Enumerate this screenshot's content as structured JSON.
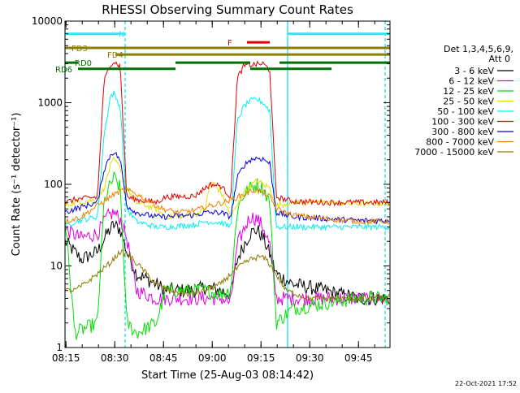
{
  "chart_data": {
    "type": "line",
    "title": "RHESSI Observing Summary Count Rates",
    "xlabel": "Start Time (25-Aug-03 08:14:42)",
    "ylabel": "Count Rate (s⁻¹ detector⁻¹)",
    "yscale": "log",
    "ylim": [
      1,
      10000
    ],
    "xlim_minutes": [
      0,
      100
    ],
    "x_ticks": [
      "08:15",
      "08:30",
      "08:45",
      "09:00",
      "09:15",
      "09:30",
      "09:45"
    ],
    "y_ticks": [
      "1",
      "10",
      "100",
      "1000",
      "10000"
    ],
    "legend_header": [
      "Det 1,3,4,5,6,9,",
      "Att 0"
    ],
    "legend_placement": "right",
    "series": [
      {
        "name": "3 - 6 keV",
        "color": "#000000",
        "points": [
          [
            0,
            20
          ],
          [
            5,
            12
          ],
          [
            10,
            15
          ],
          [
            13,
            25
          ],
          [
            15,
            32
          ],
          [
            17,
            28
          ],
          [
            19,
            15
          ],
          [
            22,
            8
          ],
          [
            28,
            6
          ],
          [
            31,
            5
          ],
          [
            40,
            5
          ],
          [
            43,
            5.5
          ],
          [
            48,
            5
          ],
          [
            51,
            4.5
          ],
          [
            53,
            12
          ],
          [
            55,
            18
          ],
          [
            57,
            25
          ],
          [
            59,
            28
          ],
          [
            61,
            22
          ],
          [
            63,
            14
          ],
          [
            65,
            8
          ],
          [
            70,
            6
          ],
          [
            80,
            5
          ],
          [
            90,
            4
          ],
          [
            100,
            4
          ]
        ]
      },
      {
        "name": "6 - 12 keV",
        "color": "#e000e0",
        "points": [
          [
            0,
            28
          ],
          [
            5,
            22
          ],
          [
            10,
            25
          ],
          [
            13,
            40
          ],
          [
            15,
            45
          ],
          [
            17,
            38
          ],
          [
            19,
            22
          ],
          [
            22,
            5
          ],
          [
            28,
            4
          ],
          [
            31,
            4
          ],
          [
            40,
            4
          ],
          [
            43,
            4
          ],
          [
            48,
            4
          ],
          [
            51,
            3.5
          ],
          [
            53,
            18
          ],
          [
            55,
            28
          ],
          [
            57,
            40
          ],
          [
            59,
            38
          ],
          [
            61,
            30
          ],
          [
            63,
            18
          ],
          [
            65,
            4
          ],
          [
            70,
            4
          ],
          [
            80,
            4
          ],
          [
            90,
            4
          ],
          [
            100,
            4
          ]
        ]
      },
      {
        "name": "12 - 25 keV",
        "color": "#00e000",
        "points": [
          [
            0,
            40
          ],
          [
            3,
            1.5
          ],
          [
            10,
            2
          ],
          [
            12,
            60
          ],
          [
            14,
            100
          ],
          [
            15,
            120
          ],
          [
            17,
            90
          ],
          [
            19,
            2
          ],
          [
            22,
            1.5
          ],
          [
            28,
            2
          ],
          [
            31,
            5
          ],
          [
            40,
            5
          ],
          [
            43,
            5
          ],
          [
            48,
            4.5
          ],
          [
            51,
            5
          ],
          [
            53,
            50
          ],
          [
            55,
            75
          ],
          [
            57,
            90
          ],
          [
            59,
            100
          ],
          [
            61,
            90
          ],
          [
            63,
            60
          ],
          [
            65,
            2
          ],
          [
            70,
            3
          ],
          [
            80,
            3.5
          ],
          [
            90,
            4
          ],
          [
            100,
            4
          ]
        ]
      },
      {
        "name": "25 - 50 keV",
        "color": "#e0e000",
        "points": [
          [
            0,
            55
          ],
          [
            3,
            60
          ],
          [
            10,
            65
          ],
          [
            12,
            90
          ],
          [
            14,
            170
          ],
          [
            15,
            200
          ],
          [
            17,
            160
          ],
          [
            19,
            90
          ],
          [
            22,
            60
          ],
          [
            28,
            50
          ],
          [
            31,
            40
          ],
          [
            40,
            42
          ],
          [
            43,
            50
          ],
          [
            45,
            110
          ],
          [
            48,
            80
          ],
          [
            51,
            40
          ],
          [
            53,
            55
          ],
          [
            55,
            80
          ],
          [
            57,
            95
          ],
          [
            59,
            110
          ],
          [
            61,
            100
          ],
          [
            63,
            90
          ],
          [
            65,
            55
          ],
          [
            70,
            60
          ],
          [
            80,
            60
          ],
          [
            90,
            58
          ],
          [
            100,
            58
          ]
        ]
      },
      {
        "name": "50 - 100 keV",
        "color": "#00f0f0",
        "points": [
          [
            0,
            30
          ],
          [
            3,
            35
          ],
          [
            10,
            40
          ],
          [
            12,
            400
          ],
          [
            14,
            1200
          ],
          [
            15,
            1300
          ],
          [
            17,
            900
          ],
          [
            19,
            50
          ],
          [
            22,
            35
          ],
          [
            28,
            30
          ],
          [
            31,
            30
          ],
          [
            40,
            32
          ],
          [
            43,
            35
          ],
          [
            48,
            34
          ],
          [
            51,
            30
          ],
          [
            53,
            600
          ],
          [
            55,
            900
          ],
          [
            57,
            1050
          ],
          [
            59,
            1100
          ],
          [
            61,
            1000
          ],
          [
            63,
            800
          ],
          [
            65,
            30
          ],
          [
            70,
            30
          ],
          [
            80,
            30
          ],
          [
            90,
            30
          ],
          [
            100,
            30
          ]
        ]
      },
      {
        "name": "100 - 300 keV",
        "color": "#e00000",
        "points": [
          [
            0,
            60
          ],
          [
            3,
            65
          ],
          [
            10,
            70
          ],
          [
            12,
            1800
          ],
          [
            14,
            3000
          ],
          [
            15,
            3200
          ],
          [
            17,
            2800
          ],
          [
            19,
            70
          ],
          [
            22,
            65
          ],
          [
            28,
            60
          ],
          [
            31,
            70
          ],
          [
            40,
            72
          ],
          [
            43,
            90
          ],
          [
            45,
            100
          ],
          [
            48,
            95
          ],
          [
            51,
            70
          ],
          [
            53,
            2000
          ],
          [
            55,
            2800
          ],
          [
            57,
            2900
          ],
          [
            59,
            2950
          ],
          [
            61,
            3000
          ],
          [
            63,
            2500
          ],
          [
            65,
            70
          ],
          [
            70,
            62
          ],
          [
            80,
            60
          ],
          [
            90,
            60
          ],
          [
            100,
            60
          ]
        ]
      },
      {
        "name": "300 - 800 keV",
        "color": "#0000e0",
        "points": [
          [
            0,
            45
          ],
          [
            3,
            50
          ],
          [
            10,
            60
          ],
          [
            12,
            150
          ],
          [
            14,
            230
          ],
          [
            15,
            250
          ],
          [
            17,
            200
          ],
          [
            19,
            55
          ],
          [
            22,
            45
          ],
          [
            28,
            40
          ],
          [
            31,
            40
          ],
          [
            40,
            42
          ],
          [
            43,
            45
          ],
          [
            48,
            45
          ],
          [
            51,
            40
          ],
          [
            53,
            120
          ],
          [
            55,
            170
          ],
          [
            57,
            200
          ],
          [
            59,
            210
          ],
          [
            61,
            205
          ],
          [
            63,
            180
          ],
          [
            65,
            45
          ],
          [
            70,
            40
          ],
          [
            80,
            38
          ],
          [
            90,
            36
          ],
          [
            100,
            36
          ]
        ]
      },
      {
        "name": "800 - 7000 keV",
        "color": "#f08000",
        "points": [
          [
            0,
            35
          ],
          [
            5,
            40
          ],
          [
            10,
            55
          ],
          [
            15,
            75
          ],
          [
            18,
            85
          ],
          [
            21,
            80
          ],
          [
            25,
            65
          ],
          [
            30,
            50
          ],
          [
            35,
            45
          ],
          [
            40,
            48
          ],
          [
            45,
            55
          ],
          [
            50,
            62
          ],
          [
            55,
            75
          ],
          [
            58,
            85
          ],
          [
            61,
            80
          ],
          [
            63,
            70
          ],
          [
            65,
            50
          ],
          [
            70,
            42
          ],
          [
            80,
            38
          ],
          [
            90,
            35
          ],
          [
            100,
            35
          ]
        ]
      },
      {
        "name": "7000 - 15000 keV",
        "color": "#8b7d00",
        "points": [
          [
            0,
            5
          ],
          [
            3,
            5
          ],
          [
            6,
            6
          ],
          [
            10,
            8
          ],
          [
            14,
            11
          ],
          [
            17,
            15
          ],
          [
            20,
            13
          ],
          [
            24,
            9
          ],
          [
            28,
            6
          ],
          [
            32,
            5
          ],
          [
            38,
            4.5
          ],
          [
            43,
            5
          ],
          [
            48,
            6
          ],
          [
            51,
            8
          ],
          [
            54,
            10
          ],
          [
            57,
            12
          ],
          [
            60,
            13
          ],
          [
            62,
            12
          ],
          [
            64,
            9
          ],
          [
            68,
            5
          ],
          [
            75,
            4
          ],
          [
            85,
            4
          ],
          [
            100,
            4
          ]
        ]
      }
    ],
    "vertical_lines": [
      {
        "x": 0,
        "style": "solid",
        "color": "#00e0e0"
      },
      {
        "x": 18.5,
        "style": "dashed",
        "color": "#00e0e0"
      },
      {
        "x": 68.5,
        "style": "solid",
        "color": "#00e0e0"
      },
      {
        "x": 98.5,
        "style": "dashed",
        "color": "#00e0e0"
      }
    ],
    "flag_bars": [
      {
        "label": "N",
        "color": "#40e0f0",
        "level": 7000,
        "segments": [
          [
            0,
            18.5
          ],
          [
            68.5,
            100
          ]
        ],
        "label_x": 19.5
      },
      {
        "label": "F",
        "color": "#e00000",
        "level": 5500,
        "segments": [
          [
            56,
            63
          ]
        ],
        "label_x": 53
      },
      {
        "label": "FD3",
        "color": "#8b7d00",
        "level": 4700,
        "segments": [
          [
            0,
            66
          ],
          [
            66,
            100
          ]
        ],
        "label_x": 5
      },
      {
        "label": "FD4",
        "color": "#8b7d00",
        "level": 3900,
        "segments": [
          [
            15.5,
            66
          ],
          [
            66,
            100
          ]
        ],
        "label_x": 16
      },
      {
        "label": "RD0",
        "color": "#007000",
        "level": 3100,
        "segments": [
          [
            0,
            4
          ],
          [
            34,
            57
          ],
          [
            66,
            100
          ]
        ],
        "label_x": 6
      },
      {
        "label": "RD6",
        "color": "#007000",
        "level": 2600,
        "segments": [
          [
            4,
            34
          ],
          [
            57,
            82
          ]
        ],
        "label_x": 0
      }
    ]
  },
  "footer": {
    "timestamp": "22-Oct-2021 17:52"
  }
}
